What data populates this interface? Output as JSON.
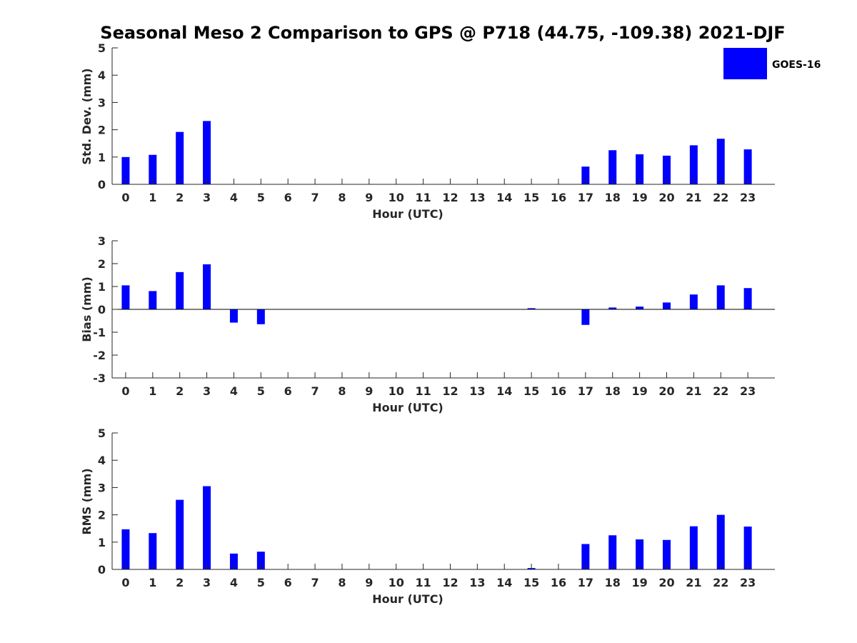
{
  "title": "Seasonal Meso 2 Comparison to GPS @ P718 (44.75, -109.38) 2021-DJF",
  "legend": {
    "label": "GOES-16",
    "color": "#0000ff",
    "placement": "top-right"
  },
  "chart_data": [
    {
      "type": "bar",
      "xlabel": "Hour (UTC)",
      "ylabel": "Std. Dev. (mm)",
      "categories": [
        "0",
        "1",
        "2",
        "3",
        "4",
        "5",
        "6",
        "7",
        "8",
        "9",
        "10",
        "11",
        "12",
        "13",
        "14",
        "15",
        "16",
        "17",
        "18",
        "19",
        "20",
        "21",
        "22",
        "23"
      ],
      "series": [
        {
          "name": "GOES-16",
          "values": [
            1.0,
            1.08,
            1.92,
            2.32,
            0,
            0,
            0,
            0,
            0,
            0,
            0,
            0,
            0,
            0,
            0,
            0,
            0,
            0.65,
            1.25,
            1.1,
            1.05,
            1.43,
            1.67,
            1.28
          ]
        }
      ],
      "ylim": [
        0,
        5
      ],
      "yticks": [
        0,
        1,
        2,
        3,
        4,
        5
      ],
      "grid": false
    },
    {
      "type": "bar",
      "xlabel": "Hour (UTC)",
      "ylabel": "Bias (mm)",
      "categories": [
        "0",
        "1",
        "2",
        "3",
        "4",
        "5",
        "6",
        "7",
        "8",
        "9",
        "10",
        "11",
        "12",
        "13",
        "14",
        "15",
        "16",
        "17",
        "18",
        "19",
        "20",
        "21",
        "22",
        "23"
      ],
      "series": [
        {
          "name": "GOES-16",
          "values": [
            1.05,
            0.8,
            1.63,
            1.97,
            -0.58,
            -0.65,
            0,
            0,
            0,
            0,
            0,
            0,
            0,
            0,
            0,
            0.05,
            0,
            -0.68,
            0.08,
            0.12,
            0.3,
            0.65,
            1.05,
            0.93
          ]
        }
      ],
      "ylim": [
        -3,
        3
      ],
      "yticks": [
        -3,
        -2,
        -1,
        0,
        1,
        2,
        3
      ],
      "grid": false
    },
    {
      "type": "bar",
      "xlabel": "Hour (UTC)",
      "ylabel": "RMS (mm)",
      "categories": [
        "0",
        "1",
        "2",
        "3",
        "4",
        "5",
        "6",
        "7",
        "8",
        "9",
        "10",
        "11",
        "12",
        "13",
        "14",
        "15",
        "16",
        "17",
        "18",
        "19",
        "20",
        "21",
        "22",
        "23"
      ],
      "series": [
        {
          "name": "GOES-16",
          "values": [
            1.47,
            1.33,
            2.55,
            3.05,
            0.58,
            0.65,
            0,
            0,
            0,
            0,
            0,
            0,
            0,
            0,
            0,
            0.05,
            0,
            0.93,
            1.25,
            1.1,
            1.08,
            1.58,
            2.0,
            1.57
          ]
        }
      ],
      "ylim": [
        0,
        5
      ],
      "yticks": [
        0,
        1,
        2,
        3,
        4,
        5
      ],
      "grid": false
    }
  ]
}
